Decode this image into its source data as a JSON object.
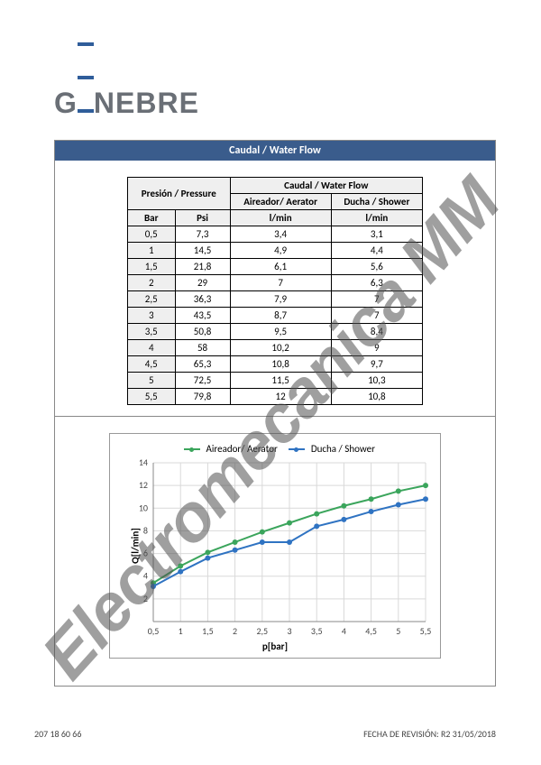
{
  "brand": {
    "prefix": "G",
    "suffix": "NEBRE",
    "text_color": "#6a6f76",
    "bar_color": "#2f5d9a"
  },
  "watermark": "Electromecanica MM",
  "section_title": "Caudal / Water Flow",
  "table": {
    "group_left": "Presión / Pressure",
    "group_right": "Caudal / Water Flow",
    "col_aerator": "Aireador/ Aerator",
    "col_shower": "Ducha / Shower",
    "sub_bar": "Bar",
    "sub_psi": "Psi",
    "sub_lmin": "l/min",
    "rows": [
      {
        "bar": "0,5",
        "psi": "7,3",
        "aer": "3,4",
        "sh": "3,1"
      },
      {
        "bar": "1",
        "psi": "14,5",
        "aer": "4,9",
        "sh": "4,4"
      },
      {
        "bar": "1,5",
        "psi": "21,8",
        "aer": "6,1",
        "sh": "5,6"
      },
      {
        "bar": "2",
        "psi": "29",
        "aer": "7",
        "sh": "6,3"
      },
      {
        "bar": "2,5",
        "psi": "36,3",
        "aer": "7,9",
        "sh": "7"
      },
      {
        "bar": "3",
        "psi": "43,5",
        "aer": "8,7",
        "sh": "7"
      },
      {
        "bar": "3,5",
        "psi": "50,8",
        "aer": "9,5",
        "sh": "8,4"
      },
      {
        "bar": "4",
        "psi": "58",
        "aer": "10,2",
        "sh": "9"
      },
      {
        "bar": "4,5",
        "psi": "65,3",
        "aer": "10,8",
        "sh": "9,7"
      },
      {
        "bar": "5",
        "psi": "72,5",
        "aer": "11,5",
        "sh": "10,3"
      },
      {
        "bar": "5,5",
        "psi": "79,8",
        "aer": "12",
        "sh": "10,8"
      }
    ]
  },
  "chart": {
    "type": "line",
    "legend_aerator": "Aireador/ Aerator",
    "legend_shower": "Ducha / Shower",
    "color_aerator": "#3ba55c",
    "color_shower": "#2f73c2",
    "grid_color": "#d9d9d9",
    "axis_color": "#888888",
    "background_color": "#ffffff",
    "xlabel": "p[bar]",
    "ylabel": "Q[l/min]",
    "xlim": [
      0.5,
      5.5
    ],
    "ylim": [
      0,
      14
    ],
    "xtick_step": 0.5,
    "ytick_step": 2,
    "x": [
      0.5,
      1,
      1.5,
      2,
      2.5,
      3,
      3.5,
      4,
      4.5,
      5,
      5.5
    ],
    "aerator": [
      3.4,
      4.9,
      6.1,
      7,
      7.9,
      8.7,
      9.5,
      10.2,
      10.8,
      11.5,
      12
    ],
    "shower": [
      3.1,
      4.4,
      5.6,
      6.3,
      7,
      7,
      8.4,
      9,
      9.7,
      10.3,
      10.8
    ],
    "line_width": 2,
    "marker_size": 3,
    "label_fontsize": 11
  },
  "footer": {
    "left": "207 18 60 66",
    "right": "FECHA DE REVISIÓN: R2 31/05/2018"
  }
}
